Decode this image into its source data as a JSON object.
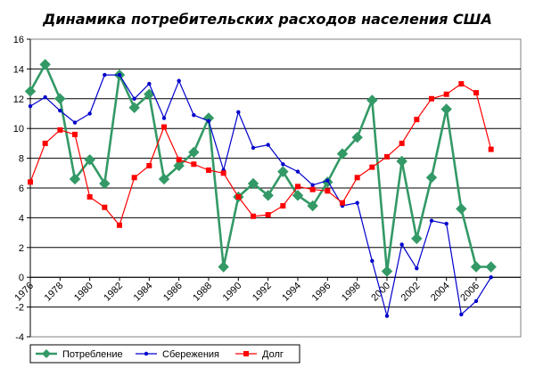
{
  "chart_data": {
    "type": "line",
    "title": "Динамика потребительских расходов населения США",
    "xlabel": "",
    "ylabel": "",
    "ylim": [
      -4,
      16
    ],
    "yticks": [
      -4,
      -2,
      0,
      2,
      4,
      6,
      8,
      10,
      12,
      14,
      16
    ],
    "xlim": [
      1976,
      2009
    ],
    "xtick_labels": [
      "1976",
      "1978",
      "1980",
      "1982",
      "1984",
      "1986",
      "1988",
      "1990",
      "1992",
      "1994",
      "1996",
      "1998",
      "2000",
      "2002",
      "2004",
      "2006"
    ],
    "xtick_values": [
      1976,
      1978,
      1980,
      1982,
      1984,
      1986,
      1988,
      1990,
      1992,
      1994,
      1996,
      1998,
      2000,
      2002,
      2004,
      2006
    ],
    "grid": true,
    "legend": "bottom-left",
    "series": [
      {
        "name": "Потребление",
        "color": "#339966",
        "marker": "diamond",
        "x": [
          1976,
          1977,
          1978,
          1979,
          1980,
          1981,
          1982,
          1983,
          1984,
          1985,
          1986,
          1987,
          1988,
          1989,
          1990,
          1991,
          1992,
          1993,
          1994,
          1995,
          1996,
          1997,
          1998,
          1999,
          2000,
          2001,
          2002,
          2003,
          2004,
          2005,
          2006,
          2007
        ],
        "values": [
          12.5,
          14.3,
          12.0,
          6.6,
          7.9,
          6.3,
          13.6,
          11.4,
          12.3,
          6.6,
          7.5,
          8.4,
          10.7,
          0.7,
          5.4,
          6.3,
          5.5,
          7.1,
          5.5,
          4.8,
          6.4,
          8.3,
          9.4,
          11.9,
          0.4,
          7.8,
          2.6,
          6.7,
          11.3,
          4.6,
          0.7,
          0.7
        ]
      },
      {
        "name": "Сбережения",
        "color": "#0000cc",
        "marker": "dot",
        "x": [
          1976,
          1977,
          1978,
          1979,
          1980,
          1981,
          1982,
          1983,
          1984,
          1985,
          1986,
          1987,
          1988,
          1989,
          1990,
          1991,
          1992,
          1993,
          1994,
          1995,
          1996,
          1997,
          1998,
          1999,
          2000,
          2001,
          2002,
          2003,
          2004,
          2005,
          2006,
          2007
        ],
        "values": [
          11.5,
          12.1,
          11.2,
          10.4,
          11.0,
          13.6,
          13.6,
          12.0,
          13.0,
          10.7,
          13.2,
          10.9,
          10.5,
          7.2,
          11.1,
          8.7,
          8.9,
          7.6,
          7.1,
          6.2,
          6.5,
          4.8,
          5.0,
          1.1,
          -2.6,
          2.2,
          0.6,
          3.8,
          3.6,
          -2.5,
          -1.6,
          0.0
        ]
      },
      {
        "name": "Долг",
        "color": "#ff0000",
        "marker": "square",
        "x": [
          1976,
          1977,
          1978,
          1979,
          1980,
          1981,
          1982,
          1983,
          1984,
          1985,
          1986,
          1987,
          1988,
          1989,
          1990,
          1991,
          1992,
          1993,
          1994,
          1995,
          1996,
          1997,
          1998,
          1999,
          2000,
          2001,
          2002,
          2003,
          2004,
          2005,
          2006,
          2007
        ],
        "values": [
          6.4,
          9.0,
          9.9,
          9.6,
          5.4,
          4.7,
          3.5,
          6.7,
          7.5,
          10.1,
          7.9,
          7.6,
          7.2,
          7.0,
          5.4,
          4.1,
          4.2,
          4.8,
          6.1,
          5.9,
          5.8,
          5.0,
          6.7,
          7.4,
          8.1,
          9.0,
          10.6,
          12.0,
          12.3,
          13.0,
          12.4,
          8.6
        ]
      }
    ]
  }
}
